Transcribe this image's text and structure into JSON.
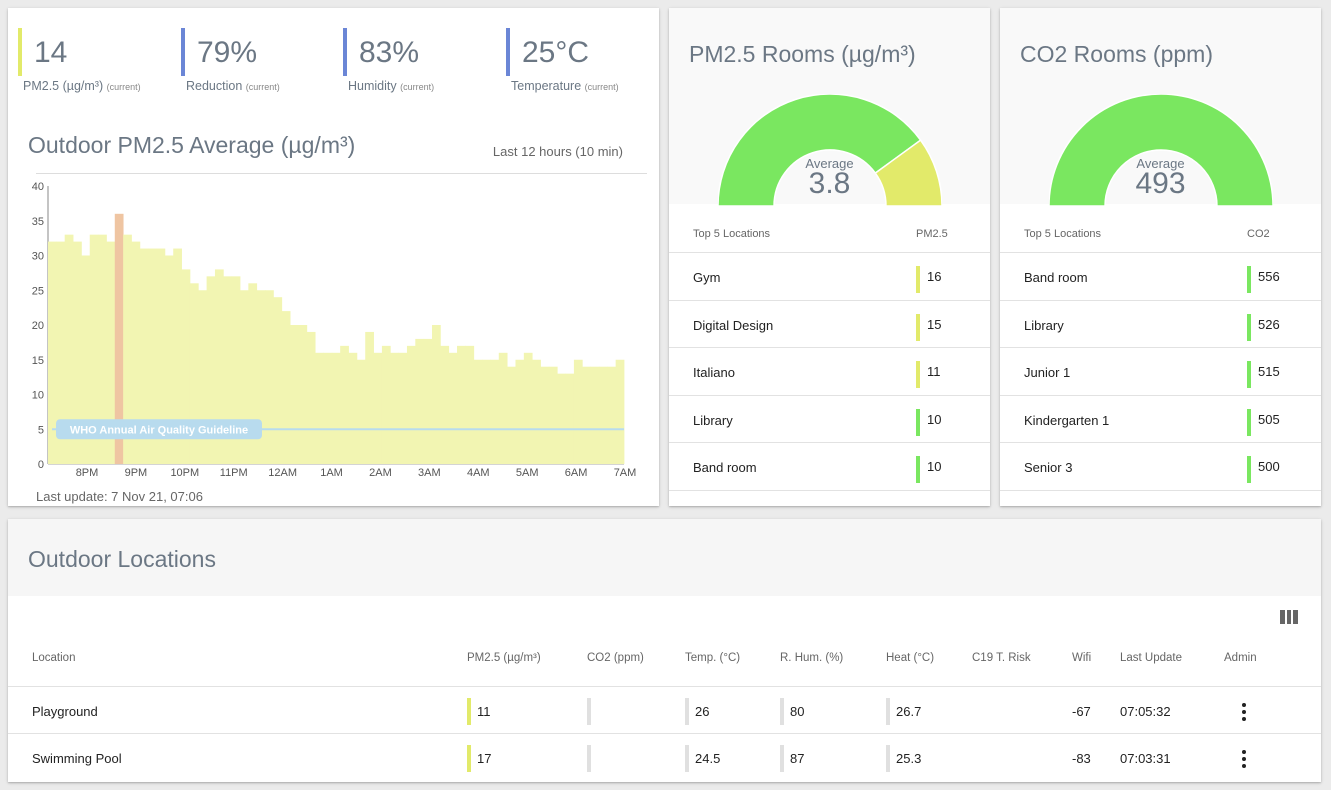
{
  "kpis": [
    {
      "value": "14",
      "label": "PM2.5 (µg/m³)",
      "note": "(current)",
      "color": "#e2ea6a"
    },
    {
      "value": "79%",
      "label": "Reduction",
      "note": "(current)",
      "color": "#6b86d6"
    },
    {
      "value": "83%",
      "label": "Humidity",
      "note": "(current)",
      "color": "#6b86d6"
    },
    {
      "value": "25°C",
      "label": "Temperature",
      "note": "(current)",
      "color": "#6b86d6"
    }
  ],
  "outdoor_chart": {
    "title": "Outdoor PM2.5 Average (µg/m³)",
    "range_label": "Last 12 hours (10 min)",
    "last_update": "Last update: 7 Nov 21, 07:06",
    "guideline_label": "WHO Annual Air Quality Guideline"
  },
  "chart_data": {
    "type": "bar",
    "title": "Outdoor PM2.5 Average (µg/m³)",
    "x_tick_labels": [
      "8PM",
      "9PM",
      "10PM",
      "11PM",
      "12AM",
      "1AM",
      "2AM",
      "3AM",
      "4AM",
      "5AM",
      "6AM",
      "7AM"
    ],
    "ylim": [
      0,
      40
    ],
    "y_ticks": [
      0,
      5,
      10,
      15,
      20,
      25,
      30,
      35,
      40
    ],
    "values": [
      32,
      32,
      33,
      32,
      30,
      33,
      33,
      32,
      36,
      33,
      32,
      31,
      31,
      31,
      30,
      31,
      28,
      26,
      25,
      27,
      28,
      27,
      27,
      25,
      26,
      25,
      25,
      24,
      22,
      20,
      20,
      19,
      16,
      16,
      16,
      17,
      16,
      15,
      19,
      16,
      17,
      16,
      16,
      17,
      18,
      18,
      20,
      17,
      16,
      17,
      17,
      15,
      15,
      15,
      16,
      14,
      15,
      16,
      15,
      14,
      14,
      13,
      13,
      15,
      14,
      14,
      14,
      14,
      15
    ],
    "highlight_index": 8,
    "colors": {
      "bar": "#f2f5b2",
      "highlight": "#efc5a2",
      "guideline": "#b8dbee"
    },
    "guideline_value": 5,
    "grid": false
  },
  "pm_rooms": {
    "title": "PM2.5 Rooms (µg/m³)",
    "average_label": "Average",
    "average_value": "3.8",
    "gauge_fraction_green": 0.8,
    "gauge_colors": [
      "#7ae760",
      "#e2ea6a"
    ],
    "col_location": "Top 5 Locations",
    "col_value": "PM2.5",
    "rows": [
      {
        "name": "Gym",
        "value": "16",
        "color": "#e2ea6a"
      },
      {
        "name": "Digital Design",
        "value": "15",
        "color": "#e2ea6a"
      },
      {
        "name": "Italiano",
        "value": "11",
        "color": "#e2ea6a"
      },
      {
        "name": "Library",
        "value": "10",
        "color": "#7ae760"
      },
      {
        "name": "Band room",
        "value": "10",
        "color": "#7ae760"
      }
    ]
  },
  "co2_rooms": {
    "title": "CO2 Rooms (ppm)",
    "average_label": "Average",
    "average_value": "493",
    "gauge_fraction_green": 1.0,
    "gauge_colors": [
      "#7ae760"
    ],
    "col_location": "Top 5 Locations",
    "col_value": "CO2",
    "rows": [
      {
        "name": "Band room",
        "value": "556",
        "color": "#7ae760"
      },
      {
        "name": "Library",
        "value": "526",
        "color": "#7ae760"
      },
      {
        "name": "Junior 1",
        "value": "515",
        "color": "#7ae760"
      },
      {
        "name": "Kindergarten 1",
        "value": "505",
        "color": "#7ae760"
      },
      {
        "name": "Senior 3",
        "value": "500",
        "color": "#7ae760"
      }
    ]
  },
  "outdoor_locations": {
    "title": "Outdoor Locations",
    "columns_icon": "view-columns-icon",
    "headers": [
      "Location",
      "PM2.5 (µg/m³)",
      "CO2 (ppm)",
      "Temp. (°C)",
      "R. Hum. (%)",
      "Heat (°C)",
      "C19 T. Risk",
      "Wifi",
      "Last Update",
      "Admin"
    ],
    "rows": [
      {
        "location": "Playground",
        "pm25": "11",
        "co2": "",
        "temp": "26",
        "hum": "80",
        "heat": "26.7",
        "risk": "",
        "wifi": "-67",
        "last": "07:05:32",
        "pm_color": "#e2ea6a"
      },
      {
        "location": "Swimming Pool",
        "pm25": "17",
        "co2": "",
        "temp": "24.5",
        "hum": "87",
        "heat": "25.3",
        "risk": "",
        "wifi": "-83",
        "last": "07:03:31",
        "pm_color": "#e2ea6a"
      }
    ]
  }
}
